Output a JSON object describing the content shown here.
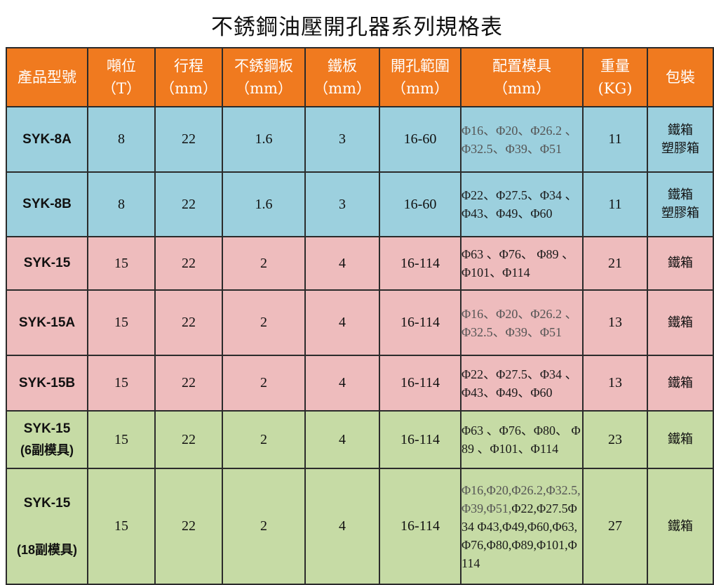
{
  "title": "不銹鋼油壓開孔器系列規格表",
  "headers": {
    "model": "產品型號",
    "tonnage": "噸位",
    "tonnage_unit": "（T）",
    "stroke": "行程",
    "stroke_unit": "（mm）",
    "stainless": "不銹鋼板",
    "stainless_unit": "（mm）",
    "iron": "鐵板",
    "iron_unit": "（mm）",
    "range": "開孔範圍",
    "range_unit": "（mm）",
    "dies": "配置模具",
    "dies_unit": "（mm）",
    "weight": "重量",
    "weight_unit": "(KG)",
    "packing": "包裝"
  },
  "rows": [
    {
      "model": "SYK-8A",
      "model_sub": "",
      "tonnage": "8",
      "stroke": "22",
      "stainless": "1.6",
      "iron": "3",
      "range": "16-60",
      "dies": "Φ16、Φ20、Φ26.2 、Φ32.5、Φ39、Φ51",
      "dies_tone": "grey",
      "weight": "11",
      "packing_1": "鐵箱",
      "packing_2": "塑膠箱"
    },
    {
      "model": "SYK-8B",
      "model_sub": "",
      "tonnage": "8",
      "stroke": "22",
      "stainless": "1.6",
      "iron": "3",
      "range": "16-60",
      "dies": "Φ22、Φ27.5、Φ34 、Φ43、Φ49、Φ60",
      "dies_tone": "dark",
      "weight": "11",
      "packing_1": "鐵箱",
      "packing_2": "塑膠箱"
    },
    {
      "model": "SYK-15",
      "model_sub": "",
      "tonnage": "15",
      "stroke": "22",
      "stainless": "2",
      "iron": "4",
      "range": "16-114",
      "dies": "Φ63 、Φ76、 Φ89 、Φ101、Φ114",
      "dies_tone": "dark",
      "weight": "21",
      "packing_1": "鐵箱",
      "packing_2": ""
    },
    {
      "model": "SYK-15A",
      "model_sub": "",
      "tonnage": "15",
      "stroke": "22",
      "stainless": "2",
      "iron": "4",
      "range": "16-114",
      "dies": "Φ16、Φ20、Φ26.2 、Φ32.5、Φ39、Φ51",
      "dies_tone": "grey",
      "weight": "13",
      "packing_1": "鐵箱",
      "packing_2": ""
    },
    {
      "model": "SYK-15B",
      "model_sub": "",
      "tonnage": "15",
      "stroke": "22",
      "stainless": "2",
      "iron": "4",
      "range": "16-114",
      "dies": "Φ22、Φ27.5、Φ34 、Φ43、Φ49、Φ60",
      "dies_tone": "dark",
      "weight": "13",
      "packing_1": "鐵箱",
      "packing_2": ""
    },
    {
      "model": "SYK-15",
      "model_sub": "(6副模具)",
      "tonnage": "15",
      "stroke": "22",
      "stainless": "2",
      "iron": "4",
      "range": "16-114",
      "dies": "Φ63 、Φ76、Φ80、 Φ89 、Φ101、Φ114",
      "dies_tone": "dark",
      "weight": "23",
      "packing_1": "鐵箱",
      "packing_2": ""
    },
    {
      "model": "SYK-15",
      "model_sub": "(18副模具)",
      "tonnage": "15",
      "stroke": "22",
      "stainless": "2",
      "iron": "4",
      "range": "16-114",
      "dies_a": "Φ16,Φ20,Φ26.2,Φ32.5,Φ39,Φ51,",
      "dies_b": "Φ22,Φ27.5Φ34 Φ43,Φ49,Φ60,Φ63,Φ76,Φ80,Φ89,Φ101,Φ114",
      "weight": "27",
      "packing_1": "鐵箱",
      "packing_2": ""
    }
  ],
  "colors": {
    "header_bg": "#f07a1f",
    "blue_row": "#9cd0de",
    "pink_row": "#eebcbd",
    "green_row": "#c6dba5"
  }
}
